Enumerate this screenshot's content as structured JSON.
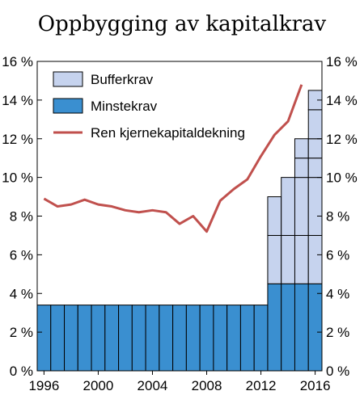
{
  "chart_data": {
    "type": "bar",
    "title": "Oppbygging av kapitalkrav",
    "xlabel": "",
    "ylabel": "",
    "ylim": [
      0,
      16
    ],
    "xlim": [
      1995.5,
      2016.5
    ],
    "y_ticks": [
      0,
      2,
      4,
      6,
      8,
      10,
      12,
      14,
      16
    ],
    "y_tick_labels": [
      "0 %",
      "2 %",
      "4 %",
      "6 %",
      "8 %",
      "10 %",
      "12 %",
      "14 %",
      "16 %"
    ],
    "x_ticks": [
      1996,
      2000,
      2004,
      2008,
      2012,
      2016
    ],
    "x_tick_labels": [
      "1996",
      "2000",
      "2004",
      "2008",
      "2012",
      "2016"
    ],
    "grid": false,
    "legend_position": "top-left",
    "categories": [
      1996,
      1997,
      1998,
      1999,
      2000,
      2001,
      2002,
      2003,
      2004,
      2005,
      2006,
      2007,
      2008,
      2009,
      2010,
      2011,
      2012,
      2013,
      2014,
      2015,
      2016
    ],
    "series": [
      {
        "name": "Minstekrav",
        "kind": "bar",
        "color": "#3a8fd0",
        "values": [
          3.4,
          3.4,
          3.4,
          3.4,
          3.4,
          3.4,
          3.4,
          3.4,
          3.4,
          3.4,
          3.4,
          3.4,
          3.4,
          3.4,
          3.4,
          3.4,
          3.4,
          4.5,
          4.5,
          4.5,
          4.5
        ]
      },
      {
        "name": "Bufferkrav",
        "kind": "bar",
        "color": "#c6d3ee",
        "segments": [
          [],
          [],
          [],
          [],
          [],
          [],
          [],
          [],
          [],
          [],
          [],
          [],
          [],
          [],
          [],
          [],
          [],
          [
            2.5,
            2.0
          ],
          [
            2.5,
            3.0
          ],
          [
            2.5,
            3.0,
            1.0,
            1.0
          ],
          [
            2.5,
            3.0,
            1.0,
            1.0,
            1.5,
            1.0
          ]
        ]
      },
      {
        "name": "Ren kjernekapitaldekning",
        "kind": "line",
        "color": "#c0504d",
        "x": [
          1996,
          1997,
          1998,
          1999,
          2000,
          2001,
          2002,
          2003,
          2004,
          2005,
          2006,
          2007,
          2008,
          2009,
          2010,
          2011,
          2012,
          2013,
          2014,
          2015
        ],
        "values": [
          8.9,
          8.5,
          8.6,
          8.85,
          8.6,
          8.5,
          8.3,
          8.2,
          8.3,
          8.2,
          7.6,
          8.0,
          7.2,
          8.8,
          9.4,
          9.9,
          11.1,
          12.2,
          12.9,
          14.8
        ]
      }
    ]
  }
}
